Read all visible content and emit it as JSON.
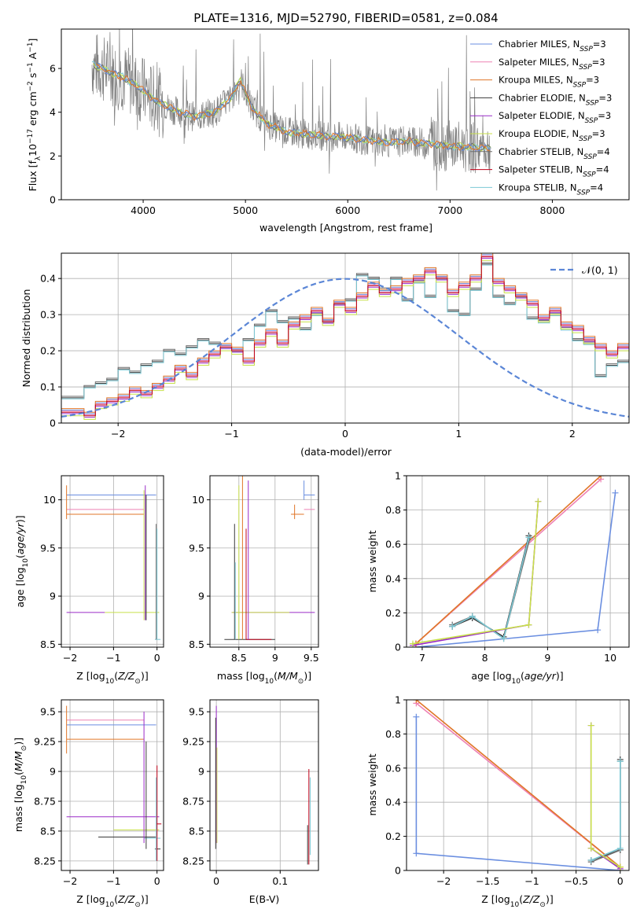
{
  "title": "PLATE=1316, MJD=52790, FIBERID=0581, z=0.084",
  "colors": {
    "data": "#808080",
    "grid": "#b0b0b0",
    "normal_curve": "#5b86d6",
    "series": [
      "#6a8ee0",
      "#ee82b4",
      "#e07628",
      "#3a3a3a",
      "#9a2bc8",
      "#c8e04a",
      "#6e6e6e",
      "#c00018",
      "#7cc8d4"
    ]
  },
  "chart_data": [
    {
      "id": "spectrum",
      "type": "line",
      "xlabel": "wavelength [Angstrom, rest frame]",
      "ylabel": "Flux [f_λ 10^-17 erg cm^-2 s^-1 A^-1]",
      "xlim": [
        3200,
        8750
      ],
      "ylim": [
        0,
        7.8
      ],
      "xticks": [
        4000,
        5000,
        6000,
        7000,
        8000
      ],
      "yticks": [
        0,
        2,
        4,
        6
      ],
      "grid": false,
      "legend_position": "upper-right",
      "legend": [
        {
          "label": "Chabrier MILES, N",
          "sub": "SSP",
          "suffix": "=3"
        },
        {
          "label": "Salpeter MILES, N",
          "sub": "SSP",
          "suffix": "=3"
        },
        {
          "label": "Kroupa MILES, N",
          "sub": "SSP",
          "suffix": "=3"
        },
        {
          "label": "Chabrier ELODIE, N",
          "sub": "SSP",
          "suffix": "=3"
        },
        {
          "label": "Salpeter ELODIE, N",
          "sub": "SSP",
          "suffix": "=3"
        },
        {
          "label": "Kroupa ELODIE, N",
          "sub": "SSP",
          "suffix": "=3"
        },
        {
          "label": "Chabrier STELIB, N",
          "sub": "SSP",
          "suffix": "=4"
        },
        {
          "label": "Salpeter STELIB, N",
          "sub": "SSP",
          "suffix": "=4"
        },
        {
          "label": "Kroupa STELIB, N",
          "sub": "SSP",
          "suffix": "=4"
        }
      ],
      "model_continuum": {
        "x": [
          3500,
          3600,
          3700,
          3800,
          3900,
          4000,
          4100,
          4300,
          4500,
          4700,
          4850,
          4950,
          5050,
          5200,
          5400,
          5600,
          5800,
          6000,
          6200,
          6400,
          6600,
          6800,
          7000,
          7200,
          7400
        ],
        "y": [
          6.2,
          6.0,
          5.8,
          5.6,
          5.3,
          5.0,
          4.6,
          4.1,
          3.8,
          4.0,
          4.6,
          5.5,
          4.3,
          3.5,
          3.1,
          3.0,
          2.9,
          2.85,
          2.7,
          2.6,
          2.7,
          2.55,
          2.45,
          2.4,
          2.35
        ]
      }
    },
    {
      "id": "residual-histogram",
      "type": "step",
      "xlabel": "(data-model)/error",
      "ylabel": "Normed distribution",
      "xlim": [
        -2.5,
        2.5
      ],
      "ylim": [
        0,
        0.47
      ],
      "xticks": [
        -2,
        -1,
        0,
        1,
        2
      ],
      "yticks": [
        0.0,
        0.1,
        0.2,
        0.3,
        0.4
      ],
      "grid": true,
      "legend_position": "upper-right",
      "legend": [
        "𝒩(0, 1)"
      ],
      "bin_edges_start": -2.5,
      "bin_width": 0.1,
      "groupA": [
        0.07,
        0.07,
        0.1,
        0.11,
        0.12,
        0.15,
        0.14,
        0.16,
        0.17,
        0.2,
        0.19,
        0.21,
        0.23,
        0.22,
        0.21,
        0.2,
        0.23,
        0.27,
        0.31,
        0.28,
        0.29,
        0.26,
        0.3,
        0.28,
        0.33,
        0.34,
        0.41,
        0.4,
        0.37,
        0.4,
        0.34,
        0.39,
        0.35,
        0.4,
        0.31,
        0.3,
        0.37,
        0.44,
        0.35,
        0.33,
        0.35,
        0.29,
        0.28,
        0.3,
        0.26,
        0.23,
        0.22,
        0.13,
        0.16,
        0.17,
        0.19,
        0.17,
        0.11,
        0.15,
        0.13,
        0.12,
        0.16,
        0.11,
        0.1,
        0.07,
        0.07,
        0.07,
        0.06,
        0.05,
        0.05,
        0.05,
        0.04,
        0.04,
        0.03,
        0.03
      ],
      "groupB": [
        0.03,
        0.03,
        0.02,
        0.05,
        0.06,
        0.07,
        0.09,
        0.08,
        0.1,
        0.12,
        0.15,
        0.13,
        0.17,
        0.19,
        0.21,
        0.2,
        0.17,
        0.22,
        0.25,
        0.22,
        0.27,
        0.29,
        0.31,
        0.28,
        0.33,
        0.31,
        0.35,
        0.38,
        0.36,
        0.37,
        0.39,
        0.4,
        0.42,
        0.4,
        0.36,
        0.38,
        0.4,
        0.46,
        0.39,
        0.37,
        0.35,
        0.33,
        0.29,
        0.31,
        0.27,
        0.26,
        0.23,
        0.21,
        0.19,
        0.21,
        0.18,
        0.16,
        0.15,
        0.14,
        0.12,
        0.11,
        0.1,
        0.08,
        0.08,
        0.07,
        0.06,
        0.06,
        0.05,
        0.05,
        0.04,
        0.04,
        0.04,
        0.03,
        0.03,
        0.02
      ],
      "normal": {
        "mean": 0,
        "sigma": 1
      }
    },
    {
      "id": "age-vs-Z",
      "type": "errorbar",
      "xlabel": "Z [log10(Z/Z☉)]",
      "ylabel": "age [log10(age/yr)]",
      "xlim": [
        -2.2,
        0.15
      ],
      "ylim": [
        8.47,
        10.25
      ],
      "xticks": [
        -2,
        -1,
        0
      ],
      "yticks": [
        8.5,
        9.0,
        9.5,
        10.0
      ],
      "grid": true,
      "horizontal": [
        {
          "y": 10.05,
          "x0": -2.08,
          "x1": -0.02,
          "c": 0
        },
        {
          "y": 9.9,
          "x0": -2.08,
          "x1": -0.3,
          "c": 1
        },
        {
          "y": 9.85,
          "x0": -2.08,
          "x1": -0.3,
          "c": 2
        },
        {
          "y": 8.83,
          "x0": -2.08,
          "x1": -1.2,
          "c": 4
        },
        {
          "y": 8.83,
          "x0": -1.2,
          "x1": 0.05,
          "c": 5
        },
        {
          "y": 8.55,
          "x0": -0.05,
          "x1": 0.08,
          "c": 8
        }
      ],
      "vertical": [
        {
          "x": -2.08,
          "y0": 9.8,
          "y1": 10.15,
          "c": 2
        },
        {
          "x": -0.27,
          "y0": 8.75,
          "y1": 10.15,
          "c": 4
        },
        {
          "x": -0.3,
          "y0": 8.75,
          "y1": 10.1,
          "c": 5
        },
        {
          "x": -0.25,
          "y0": 8.75,
          "y1": 10.05,
          "c": 3
        },
        {
          "x": -0.02,
          "y0": 8.55,
          "y1": 9.75,
          "c": 6
        },
        {
          "x": 0.0,
          "y0": 8.55,
          "y1": 9.7,
          "c": 8
        }
      ]
    },
    {
      "id": "age-vs-mass",
      "type": "errorbar",
      "xlabel": "mass [log10(M/M☉)]",
      "ylabel": "",
      "xlim": [
        8.1,
        9.6
      ],
      "ylim": [
        8.47,
        10.25
      ],
      "xticks": [
        8.5,
        9.0,
        9.5
      ],
      "yticks": [
        8.5,
        9.0,
        9.5,
        10.0
      ],
      "grid": true,
      "horizontal": [
        {
          "y": 10.05,
          "x0": 9.4,
          "x1": 9.55,
          "c": 0
        },
        {
          "y": 9.9,
          "x0": 9.4,
          "x1": 9.55,
          "c": 1
        },
        {
          "y": 9.85,
          "x0": 9.22,
          "x1": 9.4,
          "c": 2
        },
        {
          "y": 8.83,
          "x0": 8.4,
          "x1": 9.55,
          "c": 4
        },
        {
          "y": 8.83,
          "x0": 8.4,
          "x1": 9.2,
          "c": 5
        },
        {
          "y": 8.55,
          "x0": 8.3,
          "x1": 9.0,
          "c": 3
        },
        {
          "y": 8.55,
          "x0": 8.6,
          "x1": 8.95,
          "c": 7
        }
      ],
      "vertical": [
        {
          "x": 9.4,
          "y0": 10.0,
          "y1": 10.2,
          "c": 0
        },
        {
          "x": 9.27,
          "y0": 9.8,
          "y1": 9.95,
          "c": 2
        },
        {
          "x": 8.5,
          "y0": 8.55,
          "y1": 10.15,
          "c": 5
        },
        {
          "x": 8.55,
          "y0": 8.55,
          "y1": 10.25,
          "c": 2
        },
        {
          "x": 8.63,
          "y0": 8.55,
          "y1": 10.2,
          "c": 4
        },
        {
          "x": 8.44,
          "y0": 8.55,
          "y1": 9.75,
          "c": 3
        },
        {
          "x": 8.6,
          "y0": 8.55,
          "y1": 9.7,
          "c": 7
        },
        {
          "x": 8.45,
          "y0": 8.55,
          "y1": 9.35,
          "c": 8
        }
      ]
    },
    {
      "id": "weight-vs-age",
      "type": "line",
      "xlabel": "age [log10(age/yr)]",
      "ylabel": "mass weight",
      "xlim": [
        6.75,
        10.3
      ],
      "ylim": [
        0,
        1
      ],
      "xticks": [
        7,
        8,
        9,
        10
      ],
      "yticks": [
        0.0,
        0.2,
        0.4,
        0.6,
        0.8,
        1.0
      ],
      "grid": true,
      "series": [
        {
          "c": 0,
          "x": [
            6.9,
            9.8,
            10.08
          ],
          "y": [
            0.0,
            0.1,
            0.9
          ]
        },
        {
          "c": 1,
          "x": [
            6.9,
            9.85
          ],
          "y": [
            0.02,
            0.98
          ]
        },
        {
          "c": 2,
          "x": [
            6.9,
            9.85
          ],
          "y": [
            0.02,
            1.0
          ]
        },
        {
          "c": 3,
          "x": [
            7.48,
            7.8,
            8.3,
            8.7
          ],
          "y": [
            0.12,
            0.17,
            0.06,
            0.65
          ]
        },
        {
          "c": 6,
          "x": [
            7.48,
            7.8,
            8.3,
            8.72
          ],
          "y": [
            0.13,
            0.18,
            0.05,
            0.64
          ]
        },
        {
          "c": 8,
          "x": [
            7.48,
            7.8,
            8.3,
            8.7
          ],
          "y": [
            0.12,
            0.18,
            0.05,
            0.64
          ]
        },
        {
          "c": 4,
          "x": [
            6.85,
            8.7,
            8.85
          ],
          "y": [
            0.01,
            0.13,
            0.85
          ]
        },
        {
          "c": 5,
          "x": [
            6.85,
            8.7,
            8.85
          ],
          "y": [
            0.02,
            0.13,
            0.85
          ]
        }
      ]
    },
    {
      "id": "mass-vs-Z",
      "type": "errorbar",
      "xlabel": "Z [log10(Z/Z☉)]",
      "ylabel": "mass [log10(M/M☉)]",
      "xlim": [
        -2.2,
        0.15
      ],
      "ylim": [
        8.17,
        9.6
      ],
      "xticks": [
        -2,
        -1,
        0
      ],
      "yticks": [
        8.25,
        8.5,
        8.75,
        9.0,
        9.25,
        9.5
      ],
      "grid": true,
      "horizontal": [
        {
          "y": 9.43,
          "x0": -2.08,
          "x1": -0.3,
          "c": 1
        },
        {
          "y": 9.39,
          "x0": -2.08,
          "x1": -0.02,
          "c": 0
        },
        {
          "y": 9.27,
          "x0": -2.08,
          "x1": -0.3,
          "c": 2
        },
        {
          "y": 8.62,
          "x0": -2.08,
          "x1": 0.05,
          "c": 4
        },
        {
          "y": 8.51,
          "x0": -1.0,
          "x1": 0.05,
          "c": 5
        },
        {
          "y": 8.45,
          "x0": -1.35,
          "x1": -0.02,
          "c": 3
        },
        {
          "y": 8.44,
          "x0": -0.3,
          "x1": 0.08,
          "c": 8
        },
        {
          "y": 8.56,
          "x0": -0.02,
          "x1": 0.1,
          "c": 7
        },
        {
          "y": 8.35,
          "x0": -0.05,
          "x1": 0.08,
          "c": 3
        }
      ],
      "vertical": [
        {
          "x": -2.08,
          "y0": 9.15,
          "y1": 9.55,
          "c": 2
        },
        {
          "x": -0.3,
          "y0": 8.4,
          "y1": 9.5,
          "c": 4
        },
        {
          "x": -0.25,
          "y0": 8.35,
          "y1": 9.25,
          "c": 3
        },
        {
          "x": 0.0,
          "y0": 8.25,
          "y1": 9.05,
          "c": 7
        },
        {
          "x": -0.02,
          "y0": 8.25,
          "y1": 8.95,
          "c": 8
        }
      ]
    },
    {
      "id": "mass-vs-ebv",
      "type": "errorbar",
      "xlabel": "E(B-V)",
      "ylabel": "",
      "xlim": [
        -0.01,
        0.16
      ],
      "ylim": [
        8.17,
        9.6
      ],
      "xticks": [
        0.0,
        0.1
      ],
      "yticks": [
        8.25,
        8.5,
        8.75,
        9.0,
        9.25,
        9.5
      ],
      "grid": true,
      "horizontal": [],
      "vertical": [
        {
          "x": 0.0,
          "y0": 8.4,
          "y1": 9.55,
          "c": 4
        },
        {
          "x": 0.001,
          "y0": 8.4,
          "y1": 9.2,
          "c": 5
        },
        {
          "x": -0.001,
          "y0": 8.35,
          "y1": 9.45,
          "c": 3
        },
        {
          "x": 0.145,
          "y0": 8.22,
          "y1": 9.02,
          "c": 7
        },
        {
          "x": 0.147,
          "y0": 8.3,
          "y1": 8.95,
          "c": 8
        },
        {
          "x": 0.143,
          "y0": 8.22,
          "y1": 8.55,
          "c": 3
        }
      ]
    },
    {
      "id": "weight-vs-Z",
      "type": "line",
      "xlabel": "Z [log10(Z/Z☉)]",
      "ylabel": "mass weight",
      "xlim": [
        -2.42,
        0.1
      ],
      "ylim": [
        0,
        1
      ],
      "xticks": [
        -2.0,
        -1.5,
        -1.0,
        -0.5,
        0.0
      ],
      "yticks": [
        0.0,
        0.2,
        0.4,
        0.6,
        0.8,
        1.0
      ],
      "grid": true,
      "series": [
        {
          "c": 0,
          "x": [
            -2.31,
            -2.31,
            0.0
          ],
          "y": [
            0.9,
            0.1,
            0.0
          ]
        },
        {
          "c": 1,
          "x": [
            -2.31,
            0.0
          ],
          "y": [
            0.98,
            0.02
          ]
        },
        {
          "c": 2,
          "x": [
            -2.31,
            0.0
          ],
          "y": [
            1.0,
            0.02
          ]
        },
        {
          "c": 3,
          "x": [
            -0.33,
            0.0,
            0.0
          ],
          "y": [
            0.06,
            0.12,
            0.65
          ]
        },
        {
          "c": 6,
          "x": [
            -0.33,
            0.0,
            0.0
          ],
          "y": [
            0.05,
            0.12,
            0.64
          ]
        },
        {
          "c": 8,
          "x": [
            -0.33,
            0.0,
            0.0
          ],
          "y": [
            0.06,
            0.13,
            0.64
          ]
        },
        {
          "c": 4,
          "x": [
            -0.33,
            -0.33,
            0.0
          ],
          "y": [
            0.85,
            0.13,
            0.01
          ]
        },
        {
          "c": 5,
          "x": [
            -0.33,
            -0.33,
            0.0
          ],
          "y": [
            0.85,
            0.13,
            0.02
          ]
        }
      ]
    }
  ]
}
